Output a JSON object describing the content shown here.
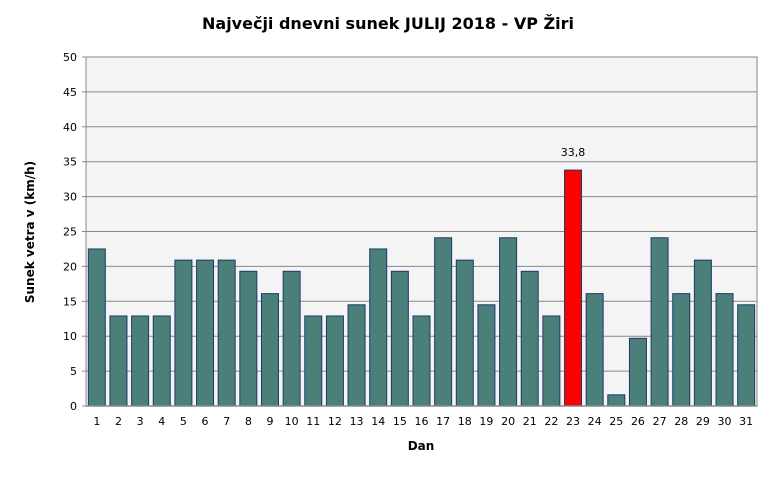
{
  "chart_data": {
    "type": "bar",
    "title": "Največji dnevni sunek JULIJ 2018 - VP Žiri",
    "xlabel": "Dan",
    "ylabel": "Sunek vetra v (km/h)",
    "ylim": [
      0,
      50
    ],
    "yticks": [
      0,
      5,
      10,
      15,
      20,
      25,
      30,
      35,
      40,
      45,
      50
    ],
    "grid": true,
    "categories": [
      "1",
      "2",
      "3",
      "4",
      "5",
      "6",
      "7",
      "8",
      "9",
      "10",
      "11",
      "12",
      "13",
      "14",
      "15",
      "16",
      "17",
      "18",
      "19",
      "20",
      "21",
      "22",
      "23",
      "24",
      "25",
      "26",
      "27",
      "28",
      "29",
      "30",
      "31"
    ],
    "values": [
      22.5,
      12.9,
      12.9,
      12.9,
      20.9,
      20.9,
      20.9,
      19.3,
      16.1,
      19.3,
      12.9,
      12.9,
      14.5,
      22.5,
      19.3,
      12.9,
      24.1,
      20.9,
      14.5,
      24.1,
      19.3,
      12.9,
      33.8,
      16.1,
      1.6,
      9.7,
      24.1,
      16.1,
      20.9,
      16.1,
      14.5
    ],
    "highlight": {
      "index": 22,
      "label": "33,8",
      "color": "#ff0000"
    },
    "bar_color": "#4a7f7a",
    "bar_edge": "#1f3a6e",
    "plot_bg": "#f4f4f4"
  }
}
